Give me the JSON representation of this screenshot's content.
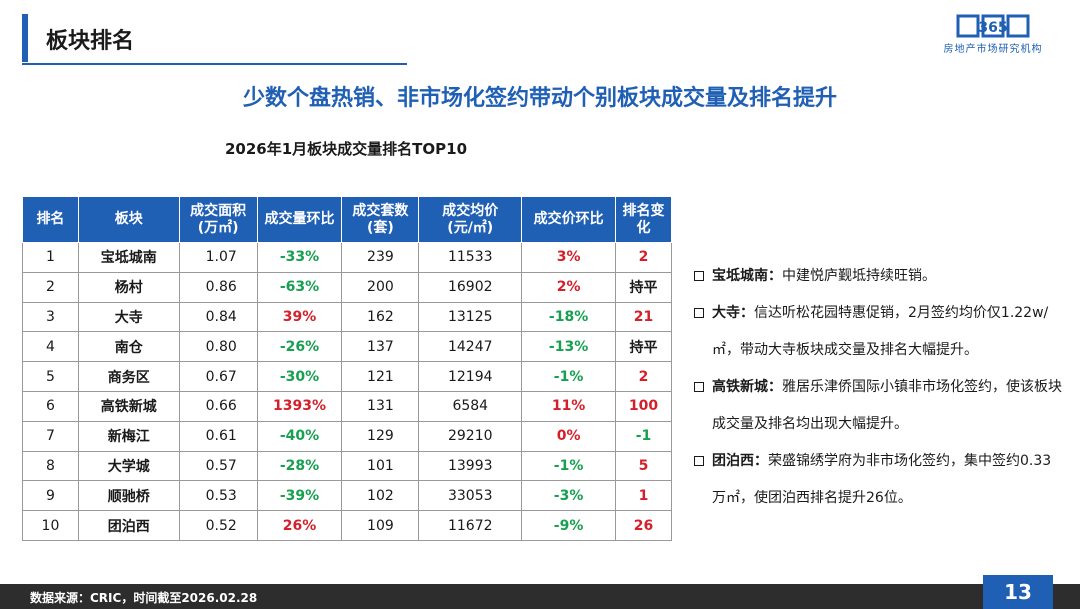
{
  "header": {
    "title": "板块排名"
  },
  "logo": {
    "mark": "365",
    "text": "房地产市场研究机构"
  },
  "headline": "少数个盘热销、非市场化签约带动个别板块成交量及排名提升",
  "table": {
    "title": "2026年1月板块成交量排名TOP10",
    "headers": [
      "排名",
      "板块",
      "成交面积\n(万㎡)",
      "成交量环比",
      "成交套数\n(套)",
      "成交均价\n(元/㎡)",
      "成交价环比",
      "排名变\n化"
    ],
    "rows": [
      {
        "rank": "1",
        "name": "宝坻城南",
        "area": "1.07",
        "area_mom": "-33%",
        "units": "239",
        "price": "11533",
        "price_mom": "3%",
        "change": "2"
      },
      {
        "rank": "2",
        "name": "杨村",
        "area": "0.86",
        "area_mom": "-63%",
        "units": "200",
        "price": "16902",
        "price_mom": "2%",
        "change": "持平"
      },
      {
        "rank": "3",
        "name": "大寺",
        "area": "0.84",
        "area_mom": "39%",
        "units": "162",
        "price": "13125",
        "price_mom": "-18%",
        "change": "21"
      },
      {
        "rank": "4",
        "name": "南仓",
        "area": "0.80",
        "area_mom": "-26%",
        "units": "137",
        "price": "14247",
        "price_mom": "-13%",
        "change": "持平"
      },
      {
        "rank": "5",
        "name": "商务区",
        "area": "0.67",
        "area_mom": "-30%",
        "units": "121",
        "price": "12194",
        "price_mom": "-1%",
        "change": "2"
      },
      {
        "rank": "6",
        "name": "高铁新城",
        "area": "0.66",
        "area_mom": "1393%",
        "units": "131",
        "price": "6584",
        "price_mom": "11%",
        "change": "100"
      },
      {
        "rank": "7",
        "name": "新梅江",
        "area": "0.61",
        "area_mom": "-40%",
        "units": "129",
        "price": "29210",
        "price_mom": "0%",
        "change": "-1"
      },
      {
        "rank": "8",
        "name": "大学城",
        "area": "0.57",
        "area_mom": "-28%",
        "units": "101",
        "price": "13993",
        "price_mom": "-1%",
        "change": "5"
      },
      {
        "rank": "9",
        "name": "顺驰桥",
        "area": "0.53",
        "area_mom": "-39%",
        "units": "102",
        "price": "33053",
        "price_mom": "-3%",
        "change": "1"
      },
      {
        "rank": "10",
        "name": "团泊西",
        "area": "0.52",
        "area_mom": "26%",
        "units": "109",
        "price": "11672",
        "price_mom": "-9%",
        "change": "26"
      }
    ],
    "colors": {
      "up": "#d4202a",
      "down": "#17a050",
      "neutral": "#1a1a1a"
    }
  },
  "notes": [
    {
      "label": "宝坻城南：",
      "text": "中建悦庐觐坻持续旺销。"
    },
    {
      "label": "大寺：",
      "text": "信达听松花园特惠促销，2月签约均价仅1.22w/㎡，带动大寺板块成交量及排名大幅提升。"
    },
    {
      "label": "高铁新城：",
      "text": "雅居乐津侨国际小镇非市场化签约，使该板块成交量及排名均出现大幅提升。"
    },
    {
      "label": "团泊西：",
      "text": "荣盛锦绣学府为非市场化签约，集中签约0.33万㎡，使团泊西排名提升26位。"
    }
  ],
  "footer": {
    "source": "数据来源：CRIC，时间截至2026.02.28",
    "page": "13"
  }
}
